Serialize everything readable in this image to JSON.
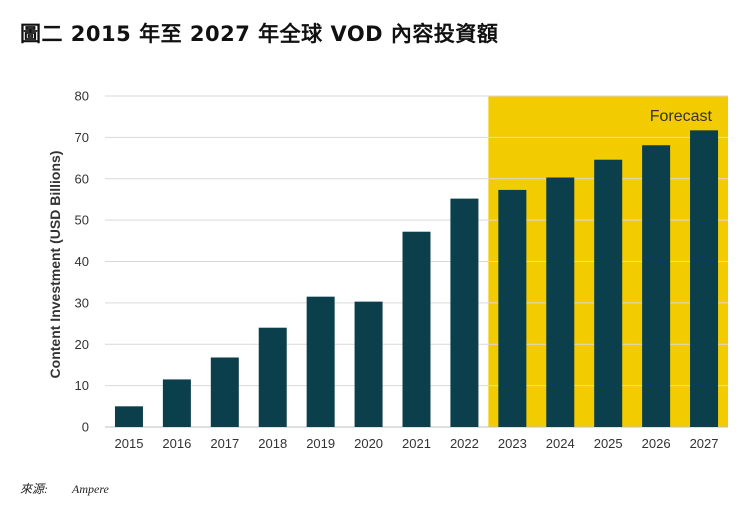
{
  "title": "圖二 2015 年至 2027 年全球 VOD 內容投資額",
  "source": {
    "label": "來源:",
    "value": "Ampere"
  },
  "colors": {
    "bar": "#0b3f4c",
    "forecast_bg": "#f2cb00",
    "grid": "#d9d9d9",
    "axis": "#bfbfbf"
  },
  "chart_data": {
    "type": "bar",
    "categories": [
      "2015",
      "2016",
      "2017",
      "2018",
      "2019",
      "2020",
      "2021",
      "2022",
      "2023",
      "2024",
      "2025",
      "2026",
      "2027"
    ],
    "values": [
      5,
      11.5,
      16.8,
      24,
      31.5,
      30.3,
      47.2,
      55.2,
      57.3,
      60.3,
      64.6,
      68.1,
      71.7
    ],
    "ylabel": "Content Investment (USD Billions)",
    "ylim": [
      0,
      80
    ],
    "yticks": [
      0,
      10,
      20,
      30,
      40,
      50,
      60,
      70,
      80
    ],
    "forecast": {
      "label": "Forecast",
      "start_category": "2023",
      "end_category": "2027"
    },
    "grid": true
  }
}
